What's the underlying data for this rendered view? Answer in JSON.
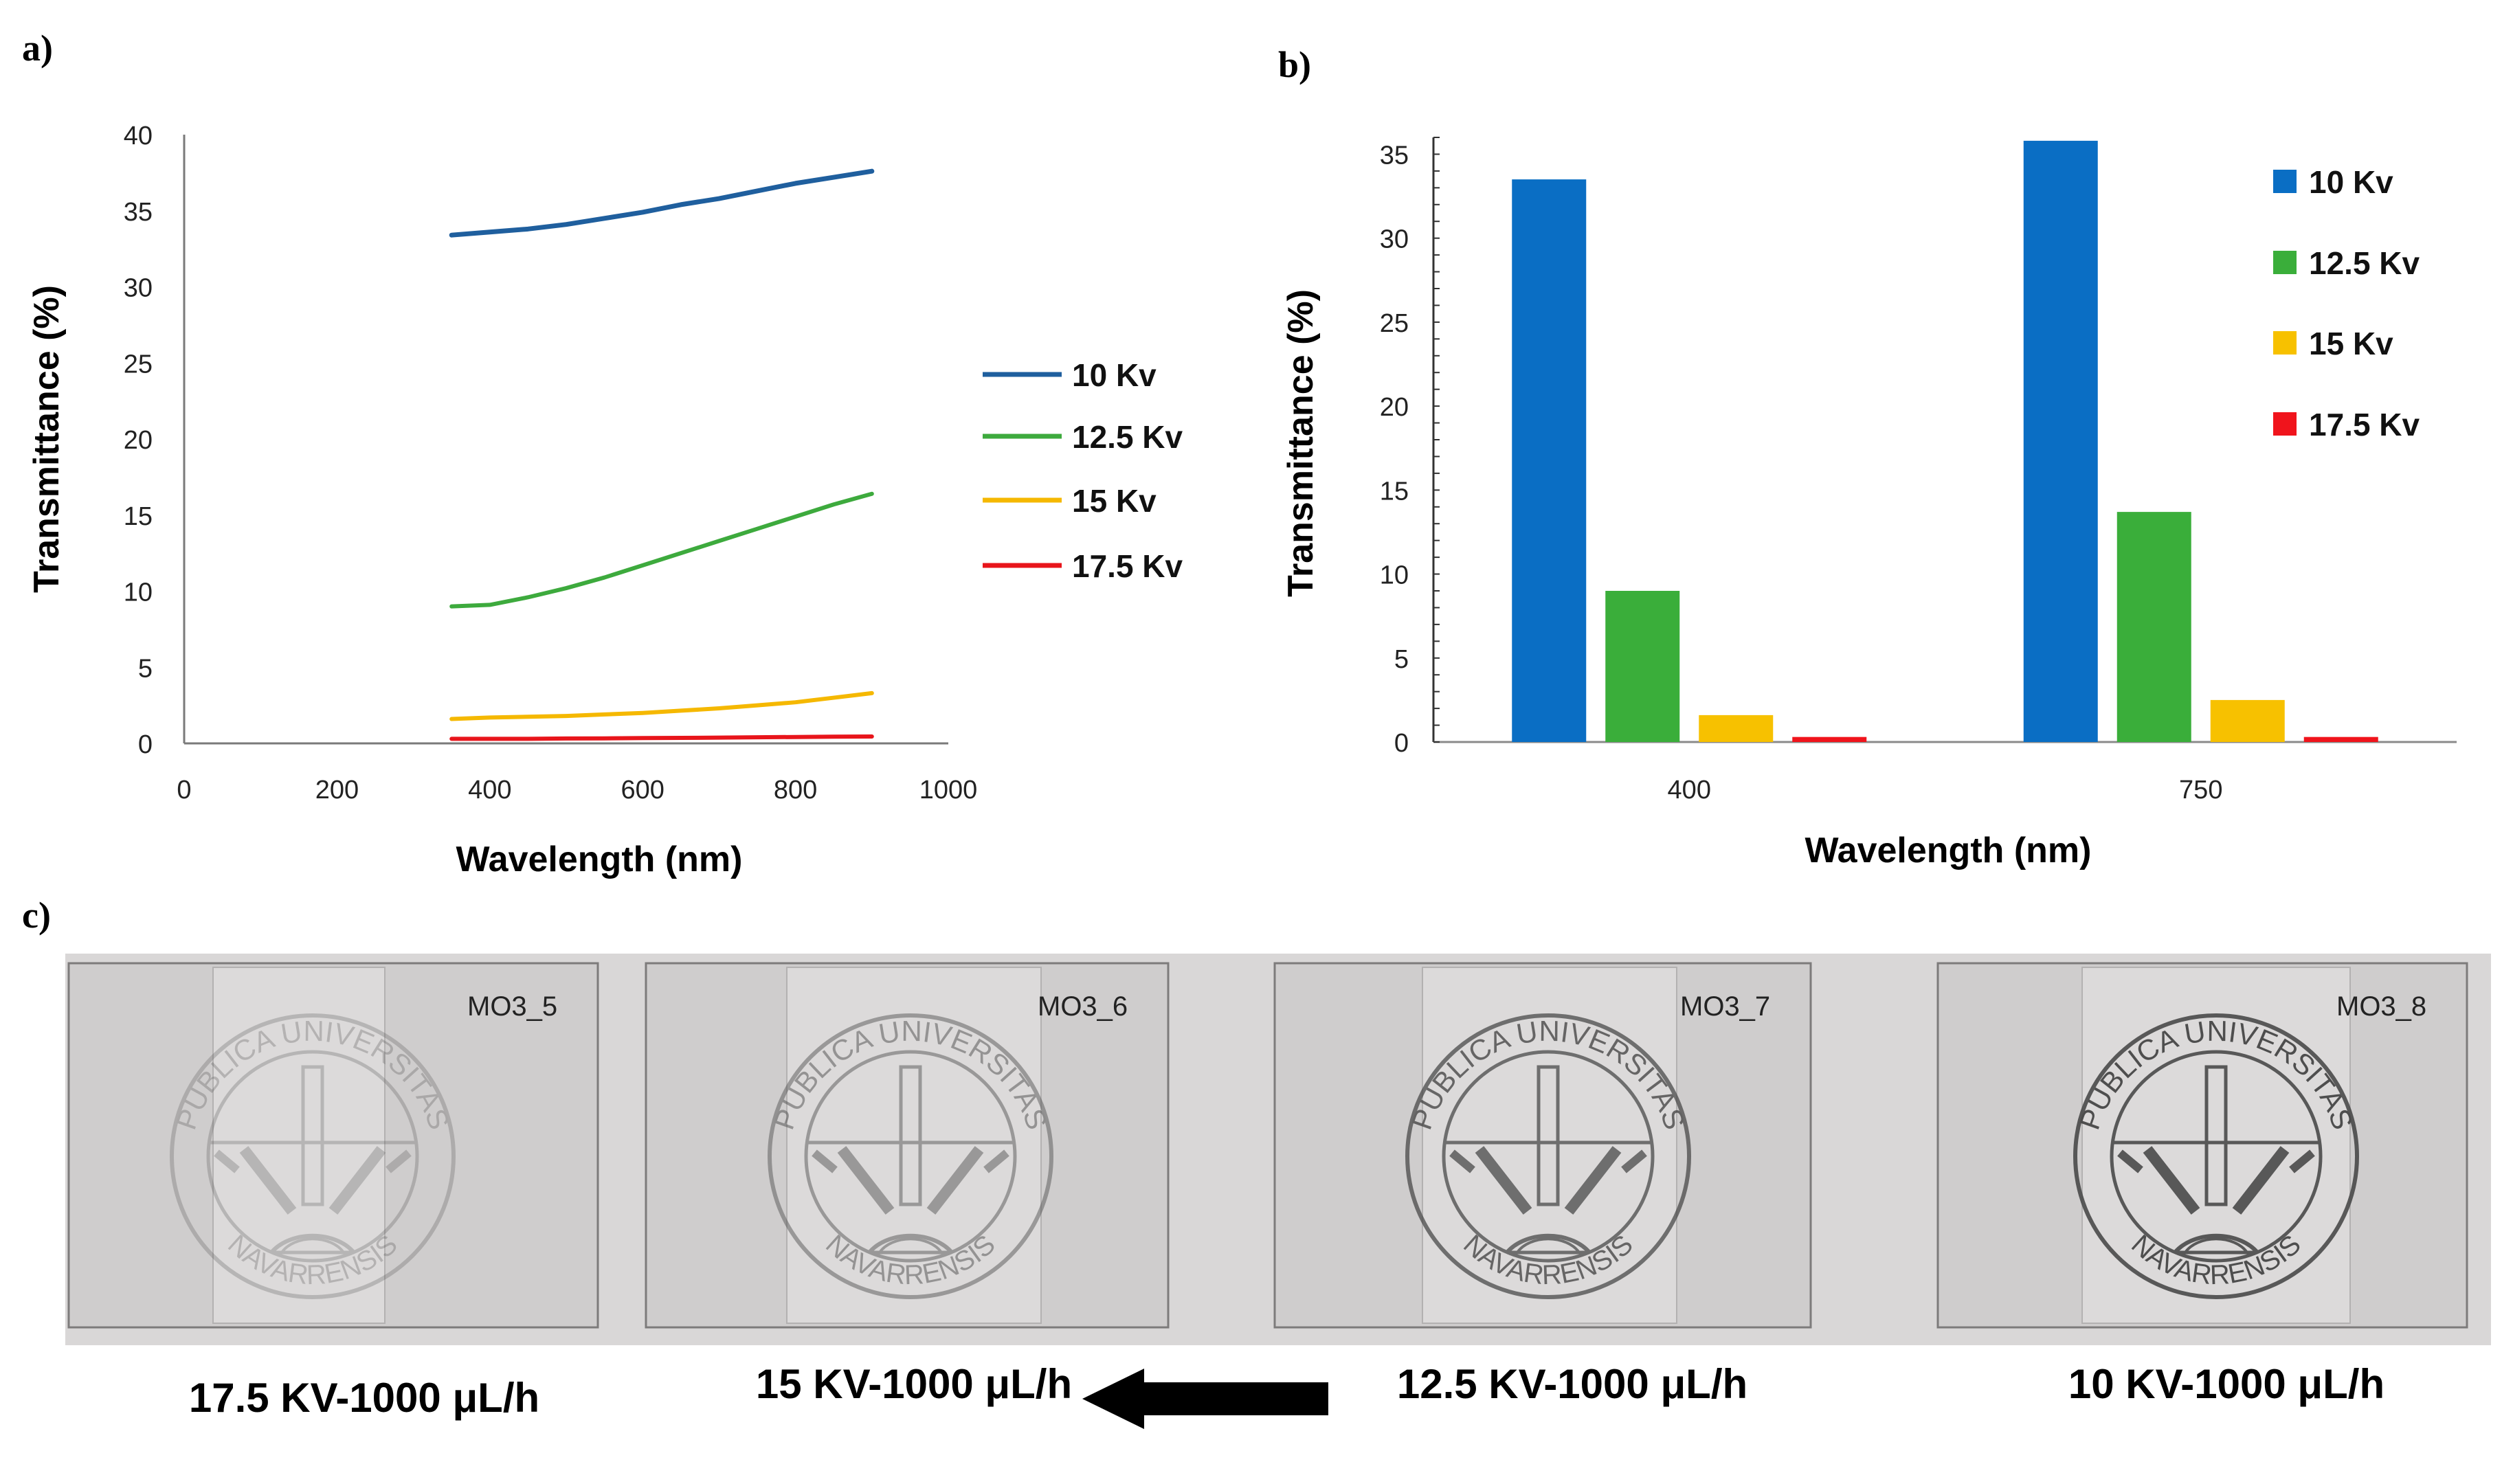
{
  "panel_labels": {
    "a": "a)",
    "b": "b)",
    "c": "c)"
  },
  "chart_data": [
    {
      "type": "line",
      "title": "",
      "xlabel": "Wavelength (nm)",
      "ylabel": "Transmittance (%)",
      "xlim": [
        0,
        1000
      ],
      "ylim": [
        0,
        40
      ],
      "xticks": [
        0,
        200,
        400,
        600,
        800,
        1000
      ],
      "yticks": [
        0,
        5,
        10,
        15,
        20,
        25,
        30,
        35,
        40
      ],
      "grid": false,
      "legend_position": "right",
      "x": [
        350,
        400,
        450,
        500,
        550,
        600,
        650,
        700,
        750,
        800,
        850,
        900
      ],
      "series": [
        {
          "name": "10 Kv",
          "color": "#1F5F9E",
          "values": [
            33.4,
            33.6,
            33.8,
            34.1,
            34.5,
            34.9,
            35.4,
            35.8,
            36.3,
            36.8,
            37.2,
            37.6
          ]
        },
        {
          "name": "12.5 Kv",
          "color": "#3DAA3D",
          "values": [
            9.0,
            9.1,
            9.6,
            10.2,
            10.9,
            11.7,
            12.5,
            13.3,
            14.1,
            14.9,
            15.7,
            16.4
          ]
        },
        {
          "name": "15 Kv",
          "color": "#F5B800",
          "values": [
            1.6,
            1.7,
            1.75,
            1.8,
            1.9,
            2.0,
            2.15,
            2.3,
            2.5,
            2.7,
            3.0,
            3.3
          ]
        },
        {
          "name": "17.5 Kv",
          "color": "#E8151B",
          "values": [
            0.3,
            0.3,
            0.3,
            0.32,
            0.33,
            0.35,
            0.36,
            0.38,
            0.4,
            0.42,
            0.44,
            0.45
          ]
        }
      ]
    },
    {
      "type": "bar",
      "title": "",
      "xlabel": "Wavelength (nm)",
      "ylabel": "Transmittance (%)",
      "categories": [
        "400",
        "750"
      ],
      "ylim": [
        0,
        36
      ],
      "yticks": [
        0,
        5,
        10,
        15,
        20,
        25,
        30,
        35
      ],
      "grid": false,
      "legend_position": "right",
      "series": [
        {
          "name": "10 Kv",
          "color": "#0A6EC4",
          "values": [
            33.5,
            35.8
          ]
        },
        {
          "name": "12.5 Kv",
          "color": "#3AAE3A",
          "values": [
            9.0,
            13.7
          ]
        },
        {
          "name": "15 Kv",
          "color": "#F7C100",
          "values": [
            1.6,
            2.5
          ]
        },
        {
          "name": "17.5 Kv",
          "color": "#F0141C",
          "values": [
            0.3,
            0.3
          ]
        }
      ]
    }
  ],
  "photo": {
    "samples": [
      {
        "tag": "MO3_5",
        "caption": "17.5 KV-1000 μL/h",
        "seal_top": "PUBLICA UNIVERSITAS",
        "seal_bottom": "NAVARRENSIS",
        "seal_opacity": 0.25
      },
      {
        "tag": "MO3_6",
        "caption": "15 KV-1000 μL/h",
        "seal_top": "PUBLICA UNIVERSITAS",
        "seal_bottom": "NAVARRENSIS",
        "seal_opacity": 0.45
      },
      {
        "tag": "MO3_7",
        "caption": "12.5 KV-1000 μL/h",
        "seal_top": "PUBLICA UNIVERSITAS",
        "seal_bottom": "NAVARRENSIS",
        "seal_opacity": 0.75
      },
      {
        "tag": "MO3_8",
        "caption": "10 KV-1000 μL/h",
        "seal_top": "PUBLICA UNIVERSITAS",
        "seal_bottom": "NAVARRENSIS",
        "seal_opacity": 0.9
      }
    ],
    "arrow_direction": "left",
    "arrow_icon": "arrow-left-icon"
  }
}
